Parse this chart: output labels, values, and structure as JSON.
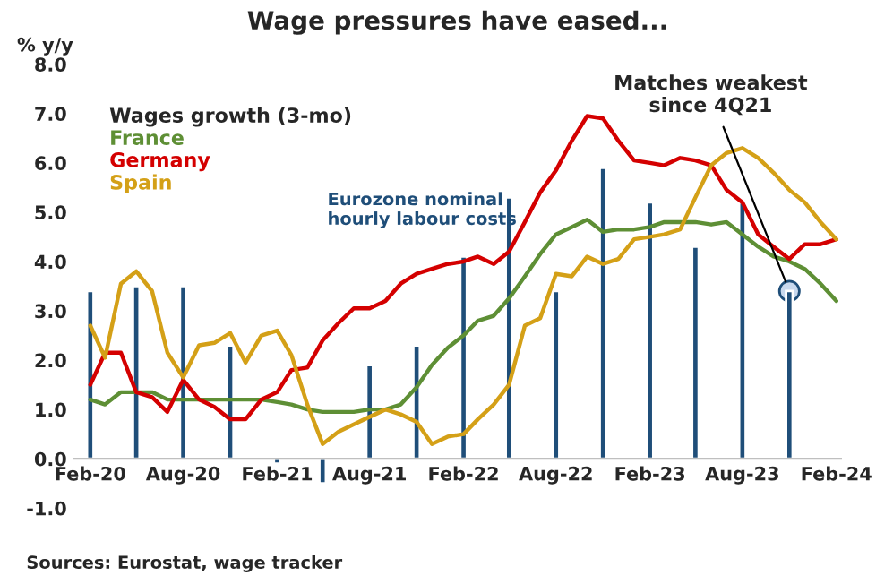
{
  "chart_data": {
    "type": "line",
    "title": "Wage pressures have eased...",
    "ylabel": "% y/y",
    "legend_title": "Wages growth (3-mo)",
    "legend": "top left",
    "grid": false,
    "line_style": "solid",
    "marker": "none",
    "xlim": [
      "2020-01",
      "2024-02-10"
    ],
    "xticks": [
      {
        "value": "2020-02",
        "label": "Feb-20"
      },
      {
        "value": "2020-08",
        "label": "Aug-20"
      },
      {
        "value": "2021-02",
        "label": "Feb-21"
      },
      {
        "value": "2021-08",
        "label": "Aug-21"
      },
      {
        "value": "2022-02",
        "label": "Feb-22"
      },
      {
        "value": "2022-08",
        "label": "Aug-22"
      },
      {
        "value": "2023-02",
        "label": "Feb-23"
      },
      {
        "value": "2023-08",
        "label": "Aug-23"
      },
      {
        "value": "2024-02",
        "label": "Feb-24"
      }
    ],
    "ylim": [
      -1,
      8
    ],
    "yticks": [
      {
        "value": -1,
        "label": "-1.0"
      },
      {
        "value": 0,
        "label": "0.0"
      },
      {
        "value": 1,
        "label": "1.0"
      },
      {
        "value": 2,
        "label": "2.0"
      },
      {
        "value": 3,
        "label": "3.0"
      },
      {
        "value": 4,
        "label": "4.0"
      },
      {
        "value": 5,
        "label": "5.0"
      },
      {
        "value": 6,
        "label": "6.0"
      },
      {
        "value": 7,
        "label": "7.0"
      },
      {
        "value": 8,
        "label": "8.0"
      }
    ],
    "series": [
      {
        "name": "Eurozone nominal hourly labour costs",
        "type": "bar",
        "color": "#1f4e79",
        "x": [
          "2020-02",
          "2020-05",
          "2020-08",
          "2020-11",
          "2021-02",
          "2021-05",
          "2021-08",
          "2021-11",
          "2022-02",
          "2022-05",
          "2022-08",
          "2022-11",
          "2023-02",
          "2023-05",
          "2023-08",
          "2023-11"
        ],
        "values": [
          3.4,
          3.5,
          3.5,
          2.3,
          -0.1,
          -0.5,
          1.9,
          2.3,
          4.1,
          5.3,
          3.4,
          5.9,
          5.2,
          4.3,
          5.2,
          3.4
        ]
      },
      {
        "name": "France",
        "type": "line",
        "color": "#5e8f35",
        "values": [
          1.2,
          1.1,
          1.35,
          1.35,
          1.35,
          1.2,
          1.2,
          1.2,
          1.2,
          1.2,
          1.2,
          1.2,
          1.15,
          1.1,
          1.0,
          0.95,
          0.95,
          0.95,
          1.0,
          1.0,
          1.1,
          1.45,
          1.9,
          2.25,
          2.5,
          2.8,
          2.9,
          3.25,
          3.7,
          4.15,
          4.55,
          4.7,
          4.85,
          4.6,
          4.65,
          4.65,
          4.7,
          4.8,
          4.8,
          4.8,
          4.75,
          4.8,
          4.55,
          4.3,
          4.1,
          4.0,
          3.85,
          3.55,
          3.2
        ]
      },
      {
        "name": "Germany",
        "type": "line",
        "color": "#d40000",
        "values": [
          1.5,
          2.15,
          2.15,
          1.35,
          1.25,
          0.95,
          1.6,
          1.2,
          1.05,
          0.8,
          0.8,
          1.2,
          1.35,
          1.8,
          1.85,
          2.4,
          2.75,
          3.05,
          3.05,
          3.2,
          3.55,
          3.75,
          3.85,
          3.95,
          4.0,
          4.1,
          3.95,
          4.2,
          4.8,
          5.4,
          5.85,
          6.45,
          6.95,
          6.9,
          6.45,
          6.05,
          6.0,
          5.95,
          6.1,
          6.05,
          5.95,
          5.45,
          5.2,
          4.55,
          4.3,
          4.05,
          4.35,
          4.35,
          4.45
        ]
      },
      {
        "name": "Spain",
        "type": "line",
        "color": "#d4a017",
        "values": [
          2.7,
          2.05,
          3.55,
          3.8,
          3.4,
          2.15,
          1.65,
          2.3,
          2.35,
          2.55,
          1.95,
          2.5,
          2.6,
          2.1,
          1.1,
          0.3,
          0.55,
          0.7,
          0.85,
          1.0,
          0.9,
          0.75,
          0.3,
          0.45,
          0.5,
          0.8,
          1.1,
          1.5,
          2.7,
          2.85,
          3.75,
          3.7,
          4.1,
          3.95,
          4.05,
          4.45,
          4.5,
          4.55,
          4.65,
          5.3,
          5.95,
          6.2,
          6.3,
          6.1,
          5.8,
          5.45,
          5.2,
          4.8,
          4.45
        ]
      }
    ],
    "x": [
      "2020-02",
      "2020-03",
      "2020-04",
      "2020-05",
      "2020-06",
      "2020-07",
      "2020-08",
      "2020-09",
      "2020-10",
      "2020-11",
      "2020-12",
      "2021-01",
      "2021-02",
      "2021-03",
      "2021-04",
      "2021-05",
      "2021-06",
      "2021-07",
      "2021-08",
      "2021-09",
      "2021-10",
      "2021-11",
      "2021-12",
      "2022-01",
      "2022-02",
      "2022-03",
      "2022-04",
      "2022-05",
      "2022-06",
      "2022-07",
      "2022-08",
      "2022-09",
      "2022-10",
      "2022-11",
      "2022-12",
      "2023-01",
      "2023-02",
      "2023-03",
      "2023-04",
      "2023-05",
      "2023-06",
      "2023-07",
      "2023-08",
      "2023-09",
      "2023-10",
      "2023-11",
      "2023-12",
      "2024-01",
      "2024-02"
    ],
    "annotations": [
      {
        "text": "Matches weakest\nsince 4Q21",
        "x": "2023-11",
        "y": 3.4
      },
      "Sources: Eurostat, wage tracker"
    ]
  }
}
